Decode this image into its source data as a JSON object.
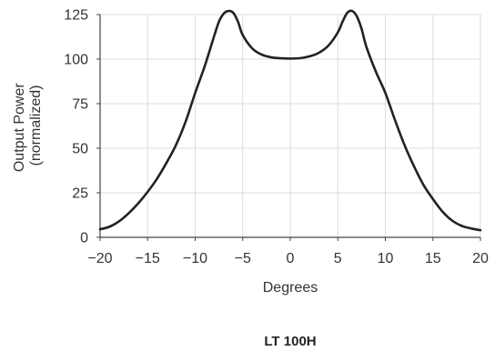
{
  "chart_data": {
    "type": "line",
    "title": "LT 100H",
    "xlabel": "Degrees",
    "ylabel_lines": [
      "Output Power",
      "(normalized)"
    ],
    "xlim": [
      -20,
      20
    ],
    "ylim": [
      0,
      125
    ],
    "xticks": [
      -20,
      -15,
      -10,
      -5,
      0,
      5,
      10,
      15,
      20
    ],
    "xtick_labels": [
      "−20",
      "−15",
      "−10",
      "−5",
      "0",
      "5",
      "10",
      "15",
      "20"
    ],
    "yticks": [
      0,
      25,
      50,
      75,
      100,
      125
    ],
    "ytick_labels": [
      "0",
      "25",
      "50",
      "75",
      "100",
      "125"
    ],
    "grid": true,
    "legend": "none",
    "series": [
      {
        "color": "#222222",
        "x": [
          -20,
          -19,
          -18,
          -17,
          -16,
          -15,
          -14,
          -13,
          -12,
          -11,
          -10,
          -9,
          -8,
          -7.5,
          -7,
          -6.5,
          -6,
          -5.5,
          -5,
          -4,
          -3,
          -2,
          -1,
          0,
          1,
          2,
          3,
          4,
          5,
          5.5,
          6,
          6.5,
          7,
          7.5,
          8,
          9,
          10,
          11,
          12,
          13,
          14,
          15,
          16,
          17,
          18,
          19,
          20
        ],
        "y": [
          4.5,
          6,
          9,
          13.5,
          19,
          25.5,
          33,
          42,
          52,
          65,
          81,
          96,
          113,
          121,
          125.5,
          127,
          126,
          121,
          113.5,
          106,
          102.5,
          101,
          100.5,
          100.3,
          100.5,
          101.5,
          103.5,
          107.5,
          115,
          121,
          126,
          127,
          124,
          117,
          107,
          93,
          81,
          66,
          52,
          40,
          29.5,
          21.5,
          14.5,
          9.5,
          6.5,
          5,
          4
        ]
      }
    ]
  }
}
